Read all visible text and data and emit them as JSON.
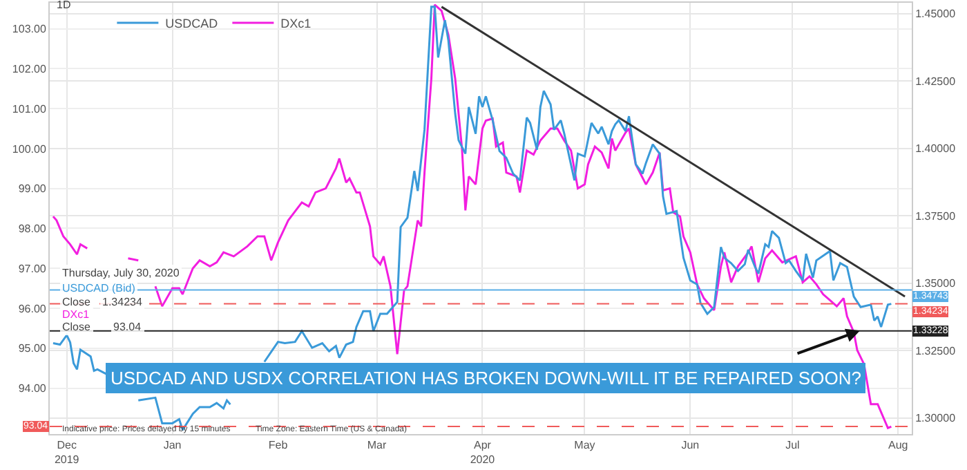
{
  "chart_data": {
    "type": "line",
    "title": "USDCAD AND USDX CORRELATION HAS BROKEN DOWN-WILL IT BE REPAIRED SOON?",
    "annotations": [
      "1D",
      "Thursday, July 30, 2020",
      "USDCAD (Bid)",
      "Close",
      "1.34234",
      "DXc1",
      "Close",
      "93.04",
      "Indicative price: Prices delayed by 15 minutes",
      "Time Zone: Eastern Time (US & Canada)"
    ],
    "series": [
      {
        "name": "USDCAD",
        "color": "#3a9ad9",
        "axis": "y2",
        "x": [
          "2019-11-27",
          "2019-11-29",
          "2019-12-01",
          "2019-12-02",
          "2019-12-03",
          "2019-12-04",
          "2019-12-05",
          "2019-12-08",
          "2019-12-09",
          "2019-12-10",
          "2019-12-13",
          "2019-12-16",
          "2019-12-19",
          "2019-12-22",
          "2019-12-27",
          "2019-12-29",
          "2020-01-01",
          "2020-01-03",
          "2020-01-04",
          "2020-01-07",
          "2020-01-09",
          "2020-01-12",
          "2020-01-14",
          "2020-01-16",
          "2020-01-17",
          "2020-01-18",
          "2020-01-21",
          "2020-01-25",
          "2020-01-28",
          "2020-02-01",
          "2020-02-03",
          "2020-02-06",
          "2020-02-08",
          "2020-02-11",
          "2020-02-14",
          "2020-02-16",
          "2020-02-18",
          "2020-02-19",
          "2020-02-21",
          "2020-02-23",
          "2020-02-24",
          "2020-02-26",
          "2020-02-28",
          "2020-02-29",
          "2020-03-02",
          "2020-03-04",
          "2020-03-07",
          "2020-03-08",
          "2020-03-10",
          "2020-03-12",
          "2020-03-13",
          "2020-03-15",
          "2020-03-17",
          "2020-03-18",
          "2020-03-19",
          "2020-03-21",
          "2020-03-22",
          "2020-03-24",
          "2020-03-25",
          "2020-03-27",
          "2020-03-28",
          "2020-03-30",
          "2020-03-31",
          "2020-04-01",
          "2020-04-02",
          "2020-04-04",
          "2020-04-06",
          "2020-04-08",
          "2020-04-10",
          "2020-04-12",
          "2020-04-14",
          "2020-04-15",
          "2020-04-17",
          "2020-04-18",
          "2020-04-19",
          "2020-04-21",
          "2020-04-22",
          "2020-04-24",
          "2020-04-25",
          "2020-04-28",
          "2020-04-29",
          "2020-05-01",
          "2020-05-03",
          "2020-05-05",
          "2020-05-06",
          "2020-05-08",
          "2020-05-09",
          "2020-05-10",
          "2020-05-11",
          "2020-05-13",
          "2020-05-14",
          "2020-05-16",
          "2020-05-18",
          "2020-05-19",
          "2020-05-21",
          "2020-05-23",
          "2020-05-24",
          "2020-05-25",
          "2020-05-28",
          "2020-05-30",
          "2020-06-01",
          "2020-06-03",
          "2020-06-04",
          "2020-06-06",
          "2020-06-08",
          "2020-06-10",
          "2020-06-11",
          "2020-06-13",
          "2020-06-15",
          "2020-06-17",
          "2020-06-18",
          "2020-06-20",
          "2020-06-21",
          "2020-06-23",
          "2020-06-24",
          "2020-06-25",
          "2020-06-27",
          "2020-06-29",
          "2020-06-30",
          "2020-07-02",
          "2020-07-04",
          "2020-07-05",
          "2020-07-07",
          "2020-07-08",
          "2020-07-12",
          "2020-07-13",
          "2020-07-15",
          "2020-07-17",
          "2020-07-19",
          "2020-07-21",
          "2020-07-24",
          "2020-07-25",
          "2020-07-26",
          "2020-07-27",
          "2020-07-29",
          "2020-07-30"
        ],
        "values": [
          1.3277,
          1.3272,
          1.3307,
          1.328,
          1.3203,
          1.318,
          1.3253,
          1.3228,
          1.3175,
          1.318,
          1.316,
          null,
          null,
          1.3065,
          1.3075,
          1.298,
          1.298,
          1.2995,
          1.2955,
          1.3015,
          1.304,
          1.304,
          1.3055,
          1.3035,
          1.3065,
          1.305,
          null,
          null,
          1.3208,
          1.3282,
          1.3277,
          1.3282,
          1.3322,
          1.326,
          1.3277,
          1.3247,
          1.3267,
          1.3223,
          1.3272,
          1.3282,
          1.3337,
          1.3396,
          1.3396,
          1.3322,
          1.3386,
          1.3386,
          1.343,
          1.3708,
          1.3743,
          1.3916,
          1.3842,
          1.4069,
          1.4525,
          1.4525,
          1.4337,
          1.4475,
          1.44,
          1.4129,
          1.403,
          1.398,
          1.4153,
          1.4054,
          1.4193,
          1.4153,
          1.4193,
          1.4104,
          1.399,
          1.3965,
          1.3906,
          1.3881,
          1.4114,
          1.4094,
          1.3995,
          1.4153,
          1.4213,
          1.4163,
          1.4069,
          1.4104,
          1.4055,
          1.3881,
          1.398,
          1.397,
          1.4094,
          1.4055,
          1.408,
          1.4015,
          1.4064,
          1.4089,
          1.4104,
          1.4064,
          1.4119,
          1.3941,
          1.3906,
          1.3946,
          1.4015,
          1.398,
          1.3822,
          1.3757,
          1.3767,
          1.3594,
          1.351,
          1.3495,
          1.3426,
          1.3386,
          1.3411,
          1.3634,
          1.3594,
          1.3574,
          1.3545,
          1.357,
          1.3624,
          1.356,
          1.3535,
          1.3644,
          1.3634,
          1.3693,
          1.3668,
          1.3574,
          1.3584,
          1.3545,
          1.351,
          1.3609,
          1.352,
          1.3584,
          1.3619,
          1.351,
          1.3574,
          1.356,
          1.345,
          1.3411,
          1.342,
          1.3361,
          1.3376,
          1.3337,
          1.342,
          1.3423
        ]
      },
      {
        "name": "DXc1",
        "color": "#f21ee0",
        "axis": "y",
        "x": [
          "2019-11-27",
          "2019-11-28",
          "2019-11-30",
          "2019-12-02",
          "2019-12-04",
          "2019-12-05",
          "2019-12-07",
          "2019-12-09",
          "2019-12-11",
          "2019-12-12",
          "2019-12-14",
          "2019-12-16",
          "2019-12-19",
          "2019-12-22",
          "2019-12-25",
          "2019-12-27",
          "2019-12-29",
          "2020-01-01",
          "2020-01-03",
          "2020-01-04",
          "2020-01-07",
          "2020-01-09",
          "2020-01-12",
          "2020-01-14",
          "2020-01-16",
          "2020-01-19",
          "2020-01-23",
          "2020-01-26",
          "2020-01-28",
          "2020-01-30",
          "2020-02-01",
          "2020-02-04",
          "2020-02-08",
          "2020-02-10",
          "2020-02-12",
          "2020-02-15",
          "2020-02-18",
          "2020-02-19",
          "2020-02-21",
          "2020-02-22",
          "2020-02-24",
          "2020-02-25",
          "2020-02-28",
          "2020-02-29",
          "2020-03-02",
          "2020-03-03",
          "2020-03-05",
          "2020-03-07",
          "2020-03-09",
          "2020-03-10",
          "2020-03-13",
          "2020-03-14",
          "2020-03-15",
          "2020-03-17",
          "2020-03-18",
          "2020-03-20",
          "2020-03-22",
          "2020-03-24",
          "2020-03-26",
          "2020-03-27",
          "2020-03-28",
          "2020-03-30",
          "2020-04-01",
          "2020-04-02",
          "2020-04-04",
          "2020-04-05",
          "2020-04-07",
          "2020-04-08",
          "2020-04-11",
          "2020-04-12",
          "2020-04-14",
          "2020-04-16",
          "2020-04-18",
          "2020-04-21",
          "2020-04-23",
          "2020-04-25",
          "2020-04-27",
          "2020-04-29",
          "2020-05-01",
          "2020-05-02",
          "2020-05-04",
          "2020-05-06",
          "2020-05-08",
          "2020-05-09",
          "2020-05-10",
          "2020-05-13",
          "2020-05-14",
          "2020-05-16",
          "2020-05-19",
          "2020-05-21",
          "2020-05-23",
          "2020-05-24",
          "2020-05-26",
          "2020-05-27",
          "2020-05-29",
          "2020-05-30",
          "2020-06-01",
          "2020-06-03",
          "2020-06-05",
          "2020-06-08",
          "2020-06-10",
          "2020-06-11",
          "2020-06-13",
          "2020-06-15",
          "2020-06-18",
          "2020-06-19",
          "2020-06-21",
          "2020-06-23",
          "2020-06-25",
          "2020-06-28",
          "2020-07-02",
          "2020-07-04",
          "2020-07-06",
          "2020-07-08",
          "2020-07-10",
          "2020-07-12",
          "2020-07-14",
          "2020-07-16",
          "2020-07-17",
          "2020-07-19",
          "2020-07-20",
          "2020-07-22",
          "2020-07-24",
          "2020-07-26",
          "2020-07-29",
          "2020-07-30"
        ],
        "values": [
          98.3,
          98.2,
          97.8,
          97.6,
          97.35,
          97.6,
          97.5,
          null,
          null,
          null,
          null,
          null,
          97.25,
          97.2,
          null,
          96.55,
          96.05,
          96.5,
          96.5,
          96.35,
          97.0,
          97.2,
          97.05,
          97.15,
          97.4,
          97.3,
          97.55,
          97.8,
          97.8,
          97.2,
          97.65,
          98.2,
          98.65,
          98.55,
          98.9,
          99.0,
          99.5,
          99.75,
          99.15,
          99.25,
          98.9,
          98.9,
          98.05,
          97.3,
          97.1,
          97.3,
          96.55,
          94.85,
          96.45,
          96.55,
          98.2,
          98.05,
          99.4,
          101.75,
          103.6,
          103.45,
          102.85,
          101.75,
          100.0,
          98.45,
          99.3,
          99.1,
          100.5,
          100.7,
          100.75,
          100.05,
          100.15,
          99.4,
          99.3,
          98.9,
          99.95,
          99.85,
          100.2,
          100.5,
          100.5,
          100.2,
          99.95,
          99.0,
          99.1,
          99.6,
          100.05,
          99.9,
          99.5,
          100.25,
          99.95,
          100.4,
          100.5,
          99.6,
          99.1,
          99.4,
          99.9,
          98.95,
          99.0,
          98.4,
          98.3,
          97.8,
          97.4,
          96.6,
          96.25,
          95.95,
          97.05,
          97.4,
          96.65,
          97.05,
          97.4,
          97.55,
          96.65,
          97.25,
          97.45,
          97.15,
          97.3,
          96.65,
          96.8,
          96.6,
          96.35,
          96.2,
          96.05,
          96.25,
          95.8,
          95.4,
          94.95,
          94.6,
          93.6,
          93.6,
          93.0,
          93.04
        ]
      },
      {
        "color": "#333333",
        "axis": "y2",
        "x": [
          "2020-03-20",
          "2020-08-03"
        ],
        "values": [
          1.4525,
          1.345
        ]
      }
    ],
    "ref_lines": [
      {
        "axis": "y2",
        "value": 1.34743,
        "label": "1.34743",
        "color": "#5aaee6",
        "line_style": "solid"
      },
      {
        "axis": "y2",
        "value": 1.34234,
        "label": "1.34234",
        "color": "#f05a5a",
        "line_style": "dashed"
      },
      {
        "axis": "y2",
        "value": 1.33228,
        "label": "1.33228",
        "color": "#222222",
        "line_style": "solid"
      },
      {
        "axis": "y",
        "value": 93.04,
        "label": "93.04",
        "color": "#f05a5a",
        "line_style": "dashed"
      }
    ],
    "xlim": [
      "2019-11-26",
      "2020-08-05"
    ],
    "xticks": [
      {
        "value": "2019-12-01",
        "label": "Dec\n2019"
      },
      {
        "value": "2020-01-01",
        "label": "Jan"
      },
      {
        "value": "2020-02-01",
        "label": "Feb"
      },
      {
        "value": "2020-03-01",
        "label": "Mar"
      },
      {
        "value": "2020-04-01",
        "label": "Apr\n2020"
      },
      {
        "value": "2020-05-01",
        "label": "May"
      },
      {
        "value": "2020-06-01",
        "label": "Jun"
      },
      {
        "value": "2020-07-01",
        "label": "Jul"
      },
      {
        "value": "2020-08-01",
        "label": "Aug"
      }
    ],
    "ylim": [
      92.85,
      103.65
    ],
    "yticks": [
      {
        "value": 94,
        "label": "94.00"
      },
      {
        "value": 95,
        "label": "95.00"
      },
      {
        "value": 96,
        "label": "96.00"
      },
      {
        "value": 97,
        "label": "97.00"
      },
      {
        "value": 98,
        "label": "98.00"
      },
      {
        "value": 99,
        "label": "99.00"
      },
      {
        "value": 100,
        "label": "100.00"
      },
      {
        "value": 101,
        "label": "101.00"
      },
      {
        "value": 102,
        "label": "102.00"
      },
      {
        "value": 103,
        "label": "103.00"
      }
    ],
    "y2lim": [
      1.294,
      1.454
    ],
    "y2ticks": [
      {
        "value": 1.3,
        "label": "1.30000"
      },
      {
        "value": 1.325,
        "label": "1.32500"
      },
      {
        "value": 1.35,
        "label": "1.35000"
      },
      {
        "value": 1.375,
        "label": "1.37500"
      },
      {
        "value": 1.4,
        "label": "1.40000"
      },
      {
        "value": 1.425,
        "label": "1.42500"
      },
      {
        "value": 1.45,
        "label": "1.45000"
      }
    ],
    "grid": true,
    "legend": "top left",
    "marker": "none",
    "line_style": "solid"
  }
}
